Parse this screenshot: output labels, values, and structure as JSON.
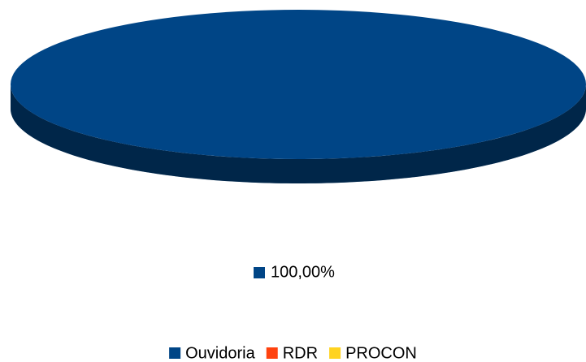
{
  "chart_data": {
    "type": "pie",
    "categories": [
      "Ouvidoria",
      "RDR",
      "PROCON"
    ],
    "values": [
      100,
      0,
      0
    ],
    "value_labels": [
      "100,00%",
      null,
      null
    ],
    "colors": [
      "#004586",
      "#ff420e",
      "#ffd320"
    ],
    "legend": "bottom"
  }
}
